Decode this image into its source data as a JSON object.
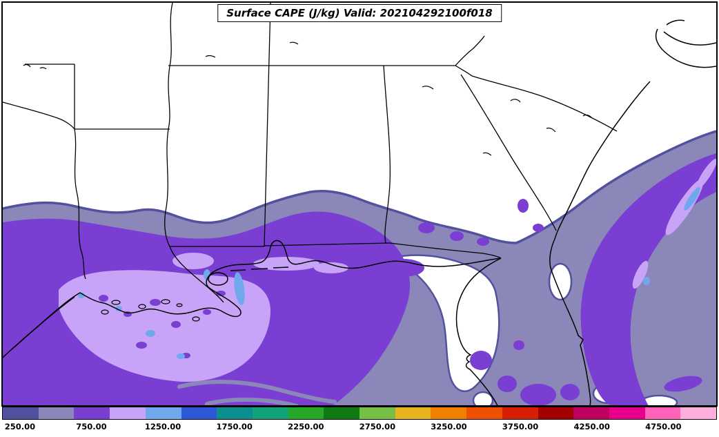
{
  "title": "Surface CAPE (J/kg) Valid: 202104292100f018",
  "palette": {
    "rim": "#51519f",
    "gray": "#8b88b9",
    "purple": "#7a3ed2",
    "lavender": "#c8a4f8",
    "light_blue": "#6fa8ec",
    "white": "#ffffff",
    "line": "#000000",
    "frame": "#000000",
    "background": "#ffffff"
  },
  "colorbar": {
    "tick_labels": [
      "250.00",
      "750.00",
      "1250.00",
      "1750.00",
      "2250.00",
      "2750.00",
      "3250.00",
      "3750.00",
      "4250.00",
      "4750.00"
    ],
    "tick_values": [
      250,
      750,
      1250,
      1750,
      2250,
      2750,
      3250,
      3750,
      4250,
      4750
    ],
    "level_step": 250,
    "segment_colors": [
      "#51519f",
      "#8b88b9",
      "#7a3ed2",
      "#c8a4f8",
      "#6fa8ec",
      "#2d58d8",
      "#0d8f8f",
      "#11a379",
      "#27a827",
      "#0e7a12",
      "#74bf44",
      "#e9b21f",
      "#f08000",
      "#ef4f00",
      "#d81e00",
      "#a30000",
      "#c00060",
      "#e8008c",
      "#ff62b8",
      "#ffaede"
    ]
  },
  "chart_data": {
    "type": "heatmap",
    "title": "Surface CAPE (J/kg) Valid: 202104292100f018",
    "variable": "Surface CAPE",
    "units": "J/kg",
    "valid_time": "202104292100f018",
    "contour_levels_jkg": [
      250,
      500,
      750,
      1000,
      1250,
      1500,
      1750,
      2000,
      2250,
      2500,
      2750,
      3000,
      3250,
      3500,
      3750,
      4000,
      4250,
      4500,
      4750,
      5000
    ],
    "colorbar_labels": [
      "250.00",
      "750.00",
      "1250.00",
      "1750.00",
      "2250.00",
      "2750.00",
      "3250.00",
      "3750.00",
      "4250.00",
      "4750.00"
    ],
    "visible_shaded_range_jkg": [
      250,
      1500
    ],
    "notes": "Filled CAPE contours over the southeastern US Gulf Coast: broad 500-750 J/kg (gray-purple) band across the Gulf states and an offshore Atlantic band; 750-1000 J/kg (purple) over Louisiana/Texas coast and Florida spots; 1000-1250 J/kg (lavender) core over southern Louisiana; small 1250-1500 J/kg (light blue) patches."
  }
}
